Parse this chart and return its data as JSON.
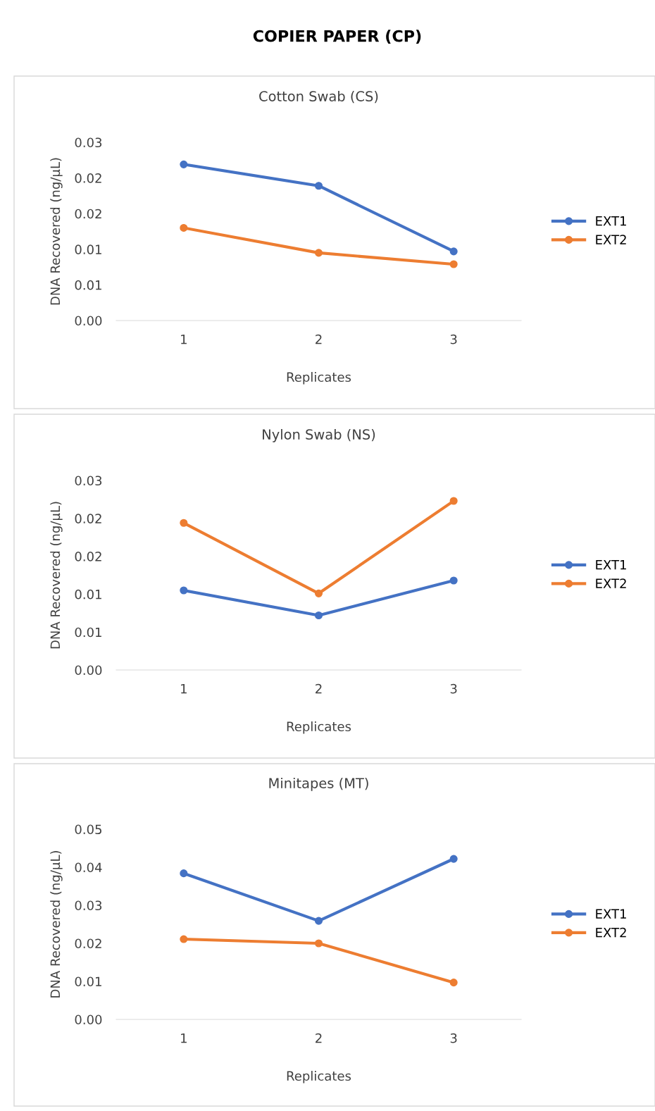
{
  "chart_data": [
    {
      "type": "line",
      "title": "COPIER PAPER (CP)",
      "subtitle": "Cotton Swab (CS)",
      "xlabel": "Replicates",
      "ylabel": "DNA Recovered (ng/µL)",
      "categories": [
        "1",
        "2",
        "3"
      ],
      "series": [
        {
          "name": "EXT1",
          "color": "#4472c4",
          "values": [
            0.0219,
            0.0189,
            0.0097
          ]
        },
        {
          "name": "EXT2",
          "color": "#ed7d31",
          "values": [
            0.013,
            0.0095,
            0.0079
          ]
        }
      ],
      "ylim": [
        0,
        0.025
      ],
      "yticks": [
        {
          "value": 0,
          "label": "0.00"
        },
        {
          "value": 0.005,
          "label": "0.01"
        },
        {
          "value": 0.01,
          "label": "0.01"
        },
        {
          "value": 0.015,
          "label": "0.02"
        },
        {
          "value": 0.02,
          "label": "0.02"
        },
        {
          "value": 0.025,
          "label": "0.03"
        }
      ],
      "legend": "right",
      "marker": "circle",
      "line_style": "solid"
    },
    {
      "type": "line",
      "title": "Nylon Swab (NS)",
      "xlabel": "Replicates",
      "ylabel": "DNA Recovered (ng/µL)",
      "categories": [
        "1",
        "2",
        "3"
      ],
      "series": [
        {
          "name": "EXT1",
          "color": "#4472c4",
          "values": [
            0.0105,
            0.0072,
            0.0118
          ]
        },
        {
          "name": "EXT2",
          "color": "#ed7d31",
          "values": [
            0.0194,
            0.0101,
            0.0223
          ]
        }
      ],
      "ylim": [
        0,
        0.025
      ],
      "yticks": [
        {
          "value": 0,
          "label": "0.00"
        },
        {
          "value": 0.005,
          "label": "0.01"
        },
        {
          "value": 0.01,
          "label": "0.01"
        },
        {
          "value": 0.015,
          "label": "0.02"
        },
        {
          "value": 0.02,
          "label": "0.02"
        },
        {
          "value": 0.025,
          "label": "0.03"
        }
      ],
      "legend": "right",
      "marker": "circle",
      "line_style": "solid"
    },
    {
      "type": "line",
      "title": "Minitapes (MT)",
      "xlabel": "Replicates",
      "ylabel": "DNA Recovered (ng/µL)",
      "categories": [
        "1",
        "2",
        "3"
      ],
      "series": [
        {
          "name": "EXT1",
          "color": "#4472c4",
          "values": [
            0.0384,
            0.0259,
            0.0422
          ]
        },
        {
          "name": "EXT2",
          "color": "#ed7d31",
          "values": [
            0.0211,
            0.02,
            0.0097
          ]
        }
      ],
      "ylim": [
        0,
        0.05
      ],
      "yticks": [
        {
          "value": 0,
          "label": "0.00"
        },
        {
          "value": 0.01,
          "label": "0.01"
        },
        {
          "value": 0.02,
          "label": "0.02"
        },
        {
          "value": 0.03,
          "label": "0.03"
        },
        {
          "value": 0.04,
          "label": "0.04"
        },
        {
          "value": 0.05,
          "label": "0.05"
        }
      ],
      "legend": "right",
      "marker": "circle",
      "line_style": "solid"
    }
  ]
}
